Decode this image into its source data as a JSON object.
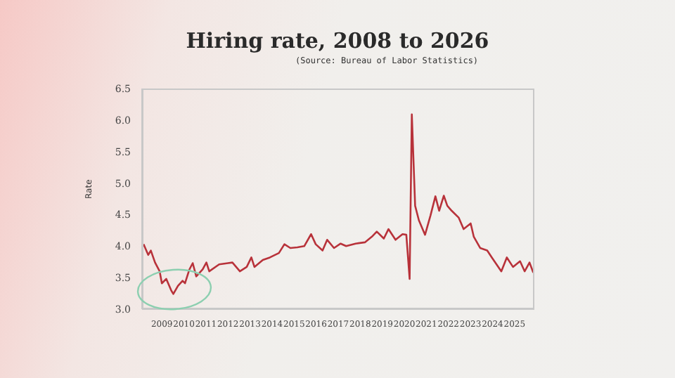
{
  "chart_data": {
    "type": "line",
    "title": "Hiring rate, 2008 to 2026",
    "ylabel": "Rate",
    "annotations": [
      "(Source: Bureau of Labor Statistics)"
    ],
    "x": [
      2008.17,
      2008.38,
      2008.5,
      2008.69,
      2008.9,
      2009.0,
      2009.2,
      2009.42,
      2009.52,
      2009.73,
      2009.94,
      2010.05,
      2010.25,
      2010.4,
      2010.56,
      2010.85,
      2011.02,
      2011.15,
      2011.6,
      2012.0,
      2012.2,
      2012.54,
      2012.85,
      2013.06,
      2013.2,
      2013.58,
      2013.9,
      2014.31,
      2014.56,
      2014.83,
      2015.15,
      2015.46,
      2015.77,
      2015.98,
      2016.29,
      2016.5,
      2016.81,
      2017.11,
      2017.36,
      2017.79,
      2018.21,
      2018.53,
      2018.75,
      2019.07,
      2019.28,
      2019.6,
      2019.92,
      2020.09,
      2020.24,
      2020.34,
      2020.49,
      2020.66,
      2020.94,
      2021.19,
      2021.41,
      2021.58,
      2021.79,
      2021.95,
      2022.15,
      2022.47,
      2022.69,
      2023.01,
      2023.15,
      2023.44,
      2023.76,
      2023.97,
      2024.4,
      2024.65,
      2024.93,
      2025.25,
      2025.46,
      2025.68,
      2025.85
    ],
    "series": [
      {
        "color": "#b8323a",
        "values": [
          4.03,
          3.86,
          3.93,
          3.74,
          3.6,
          3.41,
          3.48,
          3.3,
          3.24,
          3.37,
          3.45,
          3.41,
          3.63,
          3.73,
          3.52,
          3.63,
          3.74,
          3.6,
          3.71,
          3.73,
          3.74,
          3.6,
          3.67,
          3.82,
          3.67,
          3.78,
          3.82,
          3.89,
          4.03,
          3.97,
          3.98,
          4.0,
          4.19,
          4.03,
          3.93,
          4.1,
          3.97,
          4.04,
          4.0,
          4.04,
          4.06,
          4.15,
          4.23,
          4.12,
          4.27,
          4.1,
          4.19,
          4.18,
          3.48,
          6.09,
          4.64,
          4.41,
          4.18,
          4.49,
          4.79,
          4.56,
          4.8,
          4.64,
          4.56,
          4.45,
          4.27,
          4.36,
          4.15,
          3.97,
          3.93,
          3.82,
          3.6,
          3.82,
          3.67,
          3.76,
          3.6,
          3.74,
          3.58
        ]
      }
    ],
    "xlim": [
      2008.1,
      2025.9
    ],
    "xticks": [
      2009,
      2010,
      2011,
      2012,
      2013,
      2014,
      2015,
      2016,
      2017,
      2018,
      2019,
      2020,
      2021,
      2022,
      2023,
      2024,
      2025
    ],
    "ylim": [
      3.0,
      6.5
    ],
    "yticks": [
      {
        "value": 3.0,
        "label": "3.0"
      },
      {
        "value": 3.5,
        "label": "3.5"
      },
      {
        "value": 4.0,
        "label": "4.0"
      },
      {
        "value": 4.5,
        "label": "4.5"
      },
      {
        "value": 5.0,
        "label": "5.0"
      },
      {
        "value": 5.5,
        "label": "5.5"
      },
      {
        "value": 6.0,
        "label": "6.0"
      },
      {
        "value": 6.5,
        "label": "6.5"
      }
    ],
    "grid": false,
    "legend": false,
    "marker": "none",
    "line_style": "solid"
  }
}
